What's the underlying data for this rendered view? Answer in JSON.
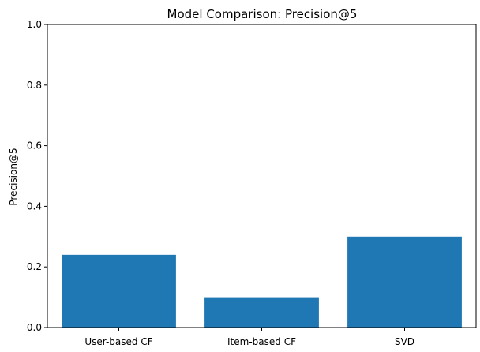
{
  "chart_data": {
    "type": "bar",
    "title": "Model Comparison: Precision@5",
    "xlabel": "",
    "ylabel": "Precision@5",
    "categories": [
      "User-based CF",
      "Item-based CF",
      "SVD"
    ],
    "values": [
      0.24,
      0.1,
      0.3
    ],
    "ylim": [
      0,
      1.0
    ],
    "yticks": [
      "0.0",
      "0.2",
      "0.4",
      "0.6",
      "0.8",
      "1.0"
    ],
    "grid": false,
    "bar_color": "#1f77b4"
  }
}
